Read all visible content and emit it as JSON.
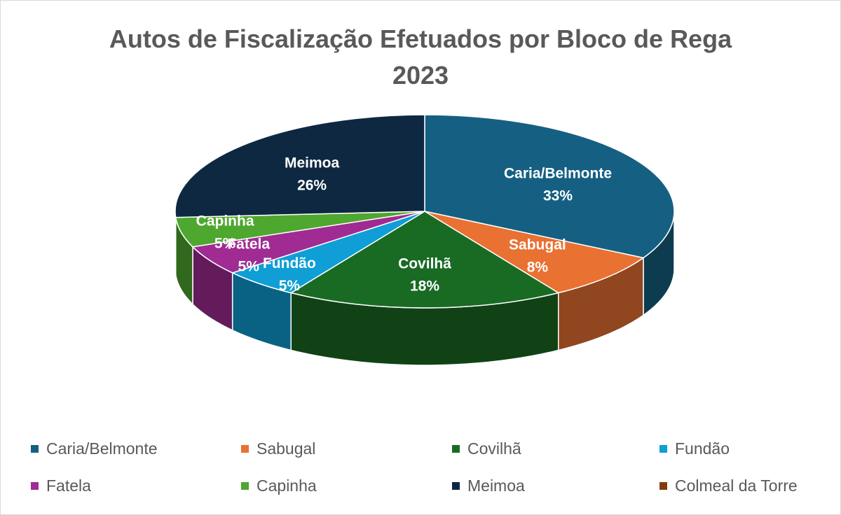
{
  "title_line1": "Autos de Fiscalização Efetuados por Bloco de Rega",
  "title_line2": "2023",
  "chart_data": {
    "type": "pie",
    "title": "Autos de Fiscalização Efetuados por Bloco de Rega 2023",
    "categories": [
      "Caria/Belmonte",
      "Sabugal",
      "Covilhã",
      "Fundão",
      "Fatela",
      "Capinha",
      "Meimoa",
      "Colmeal da Torre"
    ],
    "values": [
      33,
      8,
      18,
      5,
      5,
      5,
      26,
      0
    ],
    "labels": [
      "33%",
      "8%",
      "18%",
      "5%",
      "5%",
      "5%",
      "26%",
      ""
    ],
    "colors": [
      "#156082",
      "#E97132",
      "#196B24",
      "#0F9ED5",
      "#A02B93",
      "#4EA72E",
      "#0E2841",
      "#843C0C"
    ],
    "legend_position": "bottom"
  }
}
